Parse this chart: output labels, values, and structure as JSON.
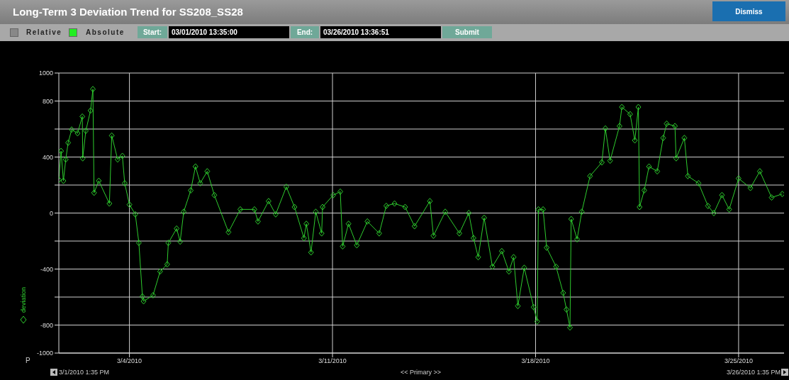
{
  "chart_data": {
    "type": "line",
    "title": "Long-Term 3 Deviation Trend for SS208_SS28",
    "annotations": [
      "Relative",
      "Absolute",
      "Start:",
      "03/01/2010 13:35:00",
      "End:",
      "03/26/2010 13:36:51",
      "Submit",
      "Dismiss",
      "P",
      "3/1/2010 1:35 PM",
      "<< Primary >>",
      "3/26/2010 1:35 PM"
    ],
    "xlim": [
      "2010-03-01T13:35",
      "2010-03-26T13:35"
    ],
    "xticks": [
      {
        "value": "2010-03-04",
        "label": "3/4/2010"
      },
      {
        "value": "2010-03-11",
        "label": "3/11/2010"
      },
      {
        "value": "2010-03-18",
        "label": "3/18/2010"
      },
      {
        "value": "2010-03-25",
        "label": "3/25/2010"
      }
    ],
    "ylim": [
      -1000,
      1000
    ],
    "yticks": [
      -1000,
      -800,
      {
        "value": -600,
        "label": null
      },
      -400,
      {
        "value": -200,
        "label": null
      },
      0,
      {
        "value": 200,
        "label": null
      },
      400,
      {
        "value": 600,
        "label": null
      },
      800,
      1000
    ],
    "grid": true,
    "legend": "left",
    "marker": "diamond",
    "line_style": "solid",
    "series": [
      {
        "name": "deviation",
        "color": "#2ecc2e",
        "x": [
          "2010-03-01T13:35",
          "2010-03-01T15:24",
          "2010-03-01T17:22",
          "2010-03-01T19:19",
          "2010-03-01T21:16",
          "2010-03-02T00:12",
          "2010-03-02T05:04",
          "2010-03-02T09:00",
          "2010-03-02T09:20",
          "2010-03-02T11:54",
          "2010-03-02T15:49",
          "2010-03-02T17:46",
          "2010-03-02T18:43",
          "2010-03-02T22:38",
          "2010-03-03T07:25",
          "2010-03-03T09:22",
          "2010-03-03T14:14",
          "2010-03-03T18:09",
          "2010-03-03T20:05",
          "2010-03-04T00:00",
          "2010-03-04T04:52",
          "2010-03-04T07:48",
          "2010-03-04T10:44",
          "2010-03-04T11:42",
          "2010-03-04T19:31",
          "2010-03-05T01:22",
          "2010-03-05T07:13",
          "2010-03-05T08:11",
          "2010-03-05T15:02",
          "2010-03-05T17:57",
          "2010-03-05T20:53",
          "2010-03-06T02:44",
          "2010-03-06T06:38",
          "2010-03-06T10:32",
          "2010-03-06T16:23",
          "2010-03-06T22:15",
          "2010-03-07T09:57",
          "2010-03-07T19:42",
          "2010-03-08T07:25",
          "2010-03-08T10:20",
          "2010-03-08T19:08",
          "2010-03-09T00:59",
          "2010-03-09T09:46",
          "2010-03-09T16:35",
          "2010-03-10T00:23",
          "2010-03-10T02:21",
          "2010-03-10T06:14",
          "2010-03-10T10:09",
          "2010-03-10T15:01",
          "2010-03-10T15:48",
          "2010-03-11T00:35",
          "2010-03-11T06:26",
          "2010-03-11T08:24",
          "2010-03-11T13:16",
          "2010-03-11T20:05",
          "2010-03-12T04:52",
          "2010-03-12T14:38",
          "2010-03-12T20:29",
          "2010-03-13T03:19",
          "2010-03-13T12:06",
          "2010-03-13T19:54",
          "2010-03-14T08:35",
          "2010-03-14T11:31",
          "2010-03-14T21:16",
          "2010-03-15T08:58",
          "2010-03-15T16:46",
          "2010-03-15T20:41",
          "2010-03-16T00:35",
          "2010-03-16T05:28",
          "2010-03-16T12:17",
          "2010-03-16T20:05",
          "2010-03-17T01:57",
          "2010-03-17T05:51",
          "2010-03-17T09:22",
          "2010-03-17T14:38",
          "2010-03-17T22:26",
          "2010-03-18T01:22",
          "2010-03-18T02:21",
          "2010-03-18T06:14",
          "2010-03-18T09:10",
          "2010-03-18T16:58",
          "2010-03-18T22:50",
          "2010-03-19T01:34",
          "2010-03-19T04:29",
          "2010-03-19T05:28",
          "2010-03-19T10:21",
          "2010-03-19T14:14",
          "2010-03-19T21:04",
          "2010-03-20T06:50",
          "2010-03-20T09:46",
          "2010-03-20T13:40",
          "2010-03-20T21:28",
          "2010-03-20T23:25",
          "2010-03-21T06:14",
          "2010-03-21T10:09",
          "2010-03-21T13:04",
          "2010-03-21T14:03",
          "2010-03-21T17:57",
          "2010-03-21T21:52",
          "2010-03-22T04:41",
          "2010-03-22T09:35",
          "2010-03-22T12:29",
          "2010-03-22T19:19",
          "2010-03-22T20:18",
          "2010-03-23T03:07",
          "2010-03-23T06:02",
          "2010-03-23T14:50",
          "2010-03-23T22:38",
          "2010-03-24T03:30",
          "2010-03-24T10:14",
          "2010-03-24T16:12",
          "2010-03-25T00:00",
          "2010-03-25T09:46",
          "2010-03-25T17:34",
          "2010-03-26T03:19",
          "2010-03-26T12:06"
        ],
        "values": [
          238,
          443,
          230,
          383,
          502,
          596,
          570,
          689,
          391,
          587,
          732,
          885,
          145,
          230,
          68,
          553,
          383,
          408,
          213,
          60,
          -9,
          -213,
          -596,
          -630,
          -587,
          -417,
          -366,
          -213,
          -111,
          -204,
          9,
          162,
          332,
          213,
          298,
          128,
          -136,
          26,
          26,
          -60,
          85,
          -9,
          187,
          43,
          -179,
          -77,
          -281,
          9,
          -145,
          43,
          128,
          153,
          -238,
          -77,
          -230,
          -60,
          -145,
          51,
          68,
          43,
          -94,
          85,
          -162,
          9,
          -145,
          0,
          -179,
          -315,
          -34,
          -383,
          -272,
          -417,
          -315,
          -664,
          -391,
          -672,
          -774,
          26,
          26,
          -247,
          -383,
          -570,
          -689,
          -817,
          -43,
          -187,
          9,
          264,
          362,
          604,
          374,
          621,
          757,
          706,
          519,
          757,
          43,
          162,
          332,
          298,
          536,
          638,
          621,
          391,
          536,
          264,
          213,
          51,
          0,
          128,
          26,
          247,
          179,
          298,
          111,
          136
        ]
      }
    ]
  }
}
